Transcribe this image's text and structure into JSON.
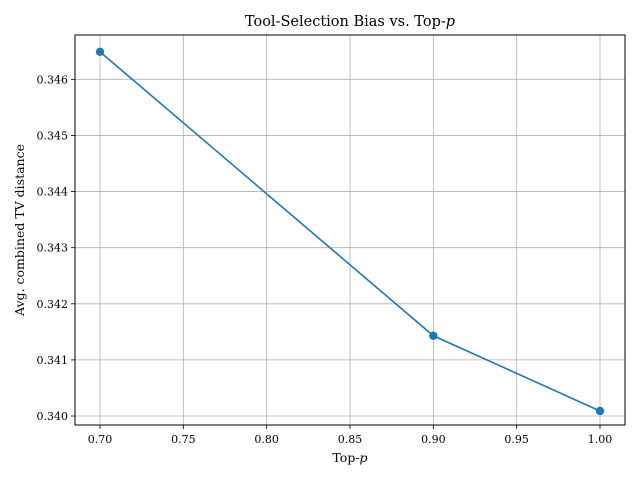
{
  "chart_data": {
    "type": "line",
    "title": "Tool-Selection Bias vs. Top-",
    "title_italic_suffix": "p",
    "xlabel": "Top-",
    "xlabel_italic_suffix": "p",
    "ylabel": "Avg. combined TV distance",
    "x": [
      0.7,
      0.9,
      1.0
    ],
    "series": [
      {
        "values": [
          0.34649,
          0.34143,
          0.34009
        ]
      }
    ],
    "xlim": [
      0.685,
      1.015
    ],
    "ylim": [
      0.33984,
      0.34679
    ],
    "x_ticks": [
      "0.70",
      "0.75",
      "0.80",
      "0.85",
      "0.90",
      "0.95",
      "1.00"
    ],
    "y_ticks": [
      "0.340",
      "0.341",
      "0.342",
      "0.343",
      "0.344",
      "0.345",
      "0.346"
    ],
    "grid": true,
    "line_color": "#1f77b4",
    "grid_color": "#b0b0b0"
  }
}
